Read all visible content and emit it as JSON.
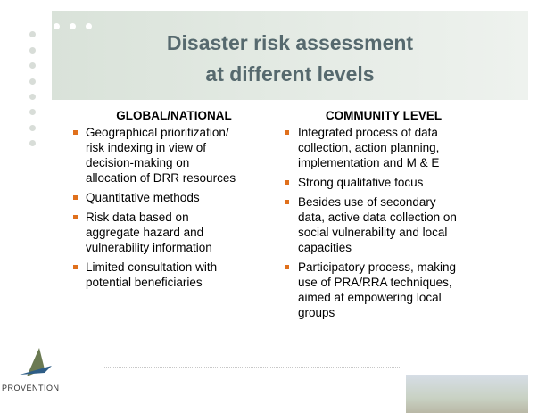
{
  "title": {
    "lines": [
      "Disaster risk assessment",
      "at different levels"
    ]
  },
  "columns": [
    {
      "heading": "GLOBAL/NATIONAL",
      "items": [
        {
          "lines": [
            "Geographical prioritization/",
            "risk indexing in view of",
            "decision-making on",
            "allocation of DRR resources"
          ]
        },
        {
          "lines": [
            "Quantitative methods"
          ]
        },
        {
          "lines": [
            "Risk data based on",
            "aggregate hazard and",
            "vulnerability information"
          ]
        },
        {
          "lines": [
            "Limited consultation with",
            "potential beneficiaries"
          ]
        }
      ]
    },
    {
      "heading": "COMMUNITY LEVEL",
      "items": [
        {
          "lines": [
            "Integrated process of data",
            "collection, action planning,",
            "implementation and M & E"
          ]
        },
        {
          "lines": [
            "Strong qualitative focus"
          ]
        },
        {
          "lines": [
            "Besides use of secondary",
            "data, active data collection on",
            "social vulnerability and local",
            "capacities"
          ]
        },
        {
          "lines": [
            "Participatory process, making",
            "use of PRA/RRA techniques,",
            "aimed at empowering local",
            "groups"
          ]
        }
      ]
    }
  ],
  "logo": "PROVENTION"
}
